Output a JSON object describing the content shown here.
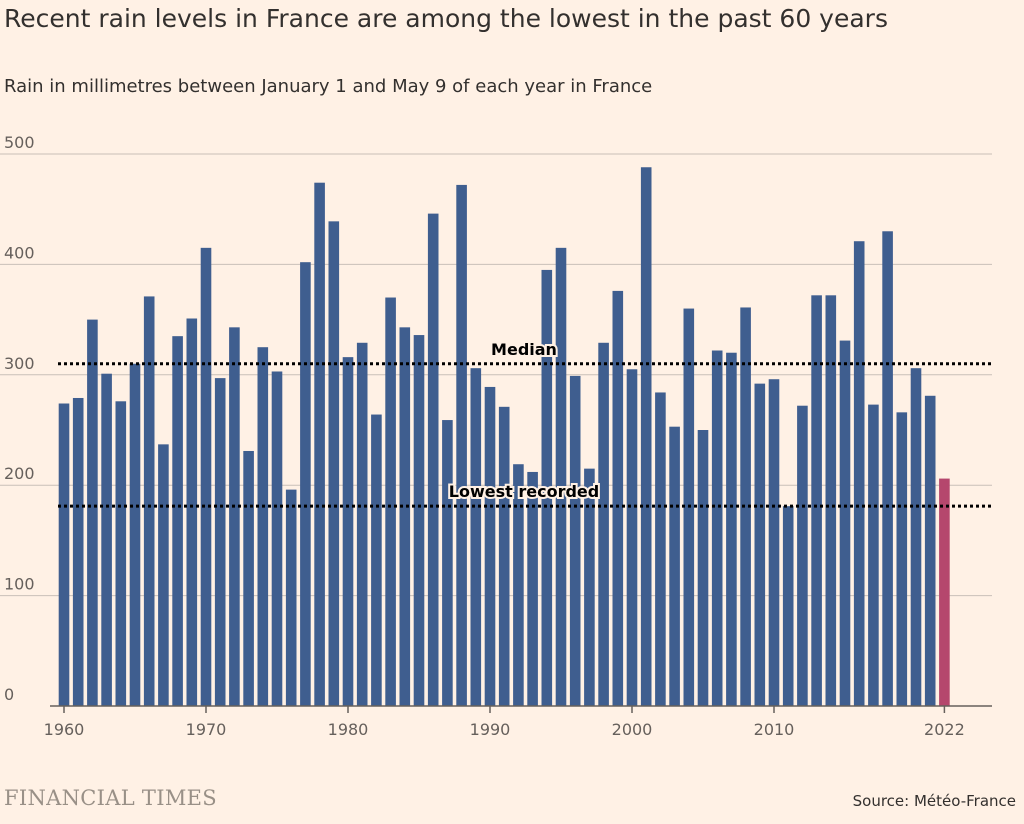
{
  "header": {
    "title": "Recent rain levels in France are among the lowest in the past 60 years",
    "subtitle": "Rain in millimetres between January 1 and May 9 of each year in France"
  },
  "footer": {
    "brand": "FINANCIAL TIMES",
    "source": "Source: Météo-France"
  },
  "colors": {
    "background": "#FFF1E5",
    "bar": "#3F5E8F",
    "highlight": "#B5476D",
    "grid": "#C9C0B8",
    "reference_line": "#000000"
  },
  "chart_data": {
    "type": "bar",
    "x": [
      1960,
      1961,
      1962,
      1963,
      1964,
      1965,
      1966,
      1967,
      1968,
      1969,
      1970,
      1971,
      1972,
      1973,
      1974,
      1975,
      1976,
      1977,
      1978,
      1979,
      1980,
      1981,
      1982,
      1983,
      1984,
      1985,
      1986,
      1987,
      1988,
      1989,
      1990,
      1991,
      1992,
      1993,
      1994,
      1995,
      1996,
      1997,
      1998,
      1999,
      2000,
      2001,
      2002,
      2003,
      2004,
      2005,
      2006,
      2007,
      2008,
      2009,
      2010,
      2011,
      2012,
      2013,
      2014,
      2015,
      2016,
      2017,
      2018,
      2019,
      2020,
      2021,
      2022
    ],
    "values": [
      274,
      279,
      350,
      301,
      276,
      310,
      371,
      237,
      335,
      351,
      415,
      297,
      343,
      231,
      325,
      303,
      196,
      402,
      474,
      439,
      316,
      329,
      264,
      370,
      343,
      336,
      446,
      259,
      472,
      306,
      289,
      271,
      219,
      212,
      395,
      415,
      299,
      215,
      329,
      376,
      305,
      488,
      284,
      253,
      360,
      250,
      322,
      320,
      361,
      292,
      296,
      181,
      272,
      372,
      372,
      331,
      421,
      273,
      430,
      266,
      306,
      281,
      206
    ],
    "highlight_index": 62,
    "x_ticks": [
      "1960",
      "1970",
      "1980",
      "1990",
      "2000",
      "2010",
      "2022"
    ],
    "y_ticks": [
      "0",
      "100",
      "200",
      "300",
      "400",
      "500"
    ],
    "ylim": [
      0,
      500
    ],
    "reference_lines": [
      {
        "label": "Median",
        "value": 310
      },
      {
        "label": "Lowest recorded",
        "value": 181
      }
    ],
    "grid": true,
    "xlabel": "",
    "ylabel": ""
  }
}
